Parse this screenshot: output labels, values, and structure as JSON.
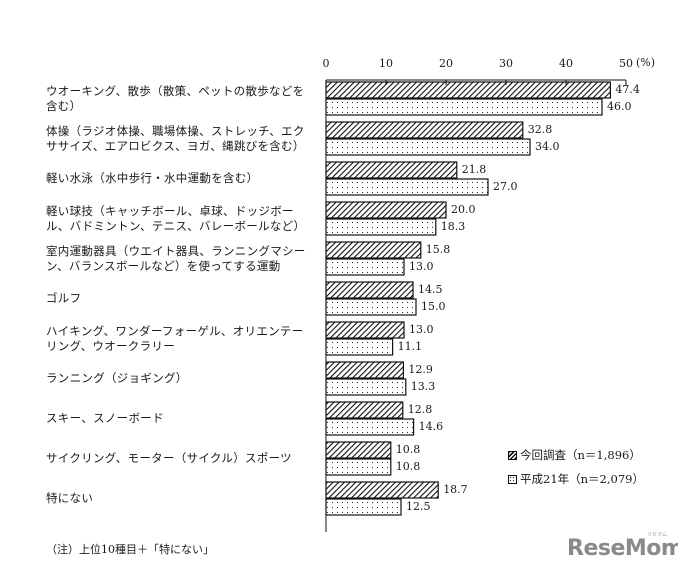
{
  "chart_data": {
    "type": "bar",
    "orientation": "horizontal",
    "title": "",
    "xlabel": "(%)",
    "ylabel": "",
    "xlim": [
      0,
      50
    ],
    "xticks": [
      "0",
      "10",
      "20",
      "30",
      "40",
      "50"
    ],
    "x_unit_label": "(%)",
    "grid": false,
    "legend_position": "lower right",
    "categories": [
      "ウオーキング、散歩（散策、ペットの散歩などを含む）",
      "体操（ラジオ体操、職場体操、ストレッチ、エクササイズ、エアロビクス、ヨガ、縄跳びを含む）",
      "軽い水泳（水中歩行・水中運動を含む）",
      "軽い球技（キャッチボール、卓球、ドッジボール、バドミントン、テニス、バレーボールなど）",
      "室内運動器具（ウエイト器具、ランニングマシーン、バランスボールなど）を使ってする運動",
      "ゴルフ",
      "ハイキング、ワンダーフォーゲル、オリエンテーリング、ウオークラリー",
      "ランニング（ジョギング）",
      "スキー、スノーボード",
      "サイクリング、モーター（サイクル）スポーツ",
      "特にない"
    ],
    "category_lines": [
      [
        "ウオーキング、散歩（散策、ペットの散歩などを",
        "含む）"
      ],
      [
        "体操（ラジオ体操、職場体操、ストレッチ、エク",
        "ササイズ、エアロビクス、ヨガ、縄跳びを含む）"
      ],
      [
        "軽い水泳（水中歩行・水中運動を含む）"
      ],
      [
        "軽い球技（キャッチボール、卓球、ドッジボー",
        "ル、バドミントン、テニス、バレーボールなど）"
      ],
      [
        "室内運動器具（ウエイト器具、ランニングマシー",
        "ン、バランスボールなど）を使ってする運動"
      ],
      [
        "ゴルフ"
      ],
      [
        "ハイキング、ワンダーフォーゲル、オリエンテー",
        "リング、ウオークラリー"
      ],
      [
        "ランニング（ジョギング）"
      ],
      [
        "スキー、スノーボード"
      ],
      [
        "サイクリング、モーター（サイクル）スポーツ"
      ],
      [
        "特にない"
      ]
    ],
    "series": [
      {
        "name": "今回調査（n＝1,896）",
        "pattern": "diagonal-hatch",
        "values": [
          47.4,
          32.8,
          21.8,
          20.0,
          15.8,
          14.5,
          13.0,
          12.9,
          12.8,
          10.8,
          18.7
        ],
        "labels": [
          "47.4",
          "32.8",
          "21.8",
          "20.0",
          "15.8",
          "14.5",
          "13.0",
          "12.9",
          "12.8",
          "10.8",
          "18.7"
        ]
      },
      {
        "name": "平成21年（n＝2,079）",
        "pattern": "dotted",
        "values": [
          46.0,
          34.0,
          27.0,
          18.3,
          13.0,
          15.0,
          11.1,
          13.3,
          14.6,
          10.8,
          12.5
        ],
        "labels": [
          "46.0",
          "34.0",
          "27.0",
          "18.3",
          "13.0",
          "15.0",
          "11.1",
          "13.3",
          "14.6",
          "10.8",
          "12.5"
        ]
      }
    ],
    "note": "（注）上位10種目＋「特にない」"
  },
  "legend": {
    "current": "今回調査（n＝1,896）",
    "previous": "平成21年（n＝2,079）"
  },
  "axis": {
    "unit": "(%)"
  },
  "footer": {
    "note": "（注）上位10種目＋「特にない」",
    "logo": "ReseMom",
    "logo_sub": "リセマム"
  },
  "colors": {
    "bar_fill": "#ffffff",
    "bar_stroke": "#111111",
    "logo": "#8a8a8a"
  }
}
